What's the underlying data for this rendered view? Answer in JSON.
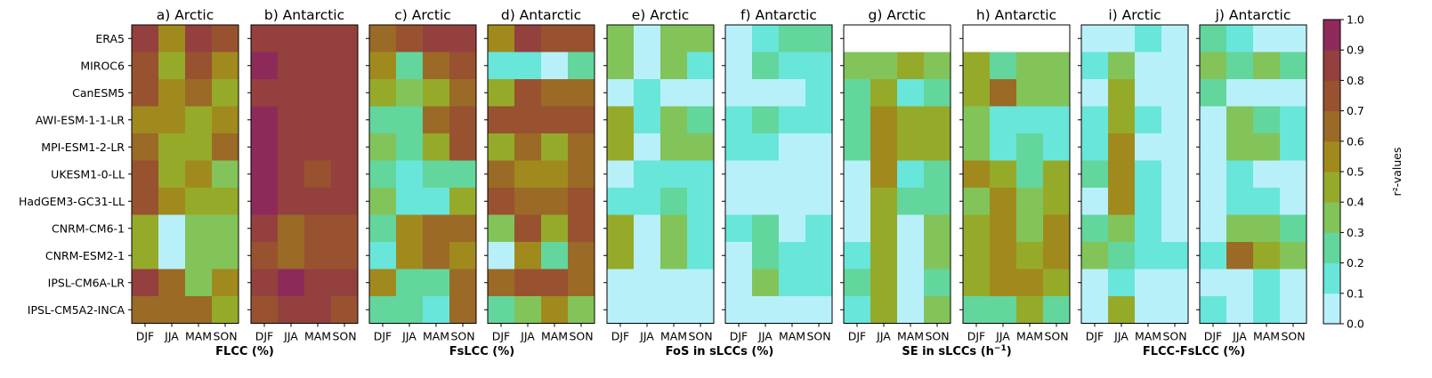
{
  "chart_data": {
    "type": "heatmap",
    "models": [
      "ERA5",
      "MIROC6",
      "CanESM5",
      "AWI-ESM-1-1-LR",
      "MPI-ESM1-2-LR",
      "UKESM1-0-LL",
      "HadGEM3-GC31-LL",
      "CNRM-CM6-1",
      "CNRM-ESM2-1",
      "IPSL-CM6A-LR",
      "IPSL-CM5A2-INCA"
    ],
    "seasons": [
      "DJF",
      "JJA",
      "MAM",
      "SON"
    ],
    "group_labels": [
      "FLCC (%)",
      "FsLCC (%)",
      "FoS in sLCCs (%)",
      "SE in sLCCs (h",
      "FLCC-FsLCC (%)"
    ],
    "colorbar": {
      "label": "r²-values",
      "ticks": [
        "0.0",
        "0.1",
        "0.2",
        "0.3",
        "0.4",
        "0.5",
        "0.6",
        "0.7",
        "0.8",
        "0.9",
        "1.0"
      ],
      "colors": [
        "#b8f0fa",
        "#68e6da",
        "#62d69c",
        "#82c45a",
        "#96aa2a",
        "#a08a1e",
        "#9a6a26",
        "#985230",
        "#94403e",
        "#8e2a5a",
        "#880078"
      ],
      "range": [
        0,
        1
      ]
    },
    "panels": [
      {
        "title": "a) Arctic",
        "values": [
          [
            0.85,
            0.55,
            0.85,
            0.75
          ],
          [
            0.75,
            0.45,
            0.75,
            0.55
          ],
          [
            0.75,
            0.55,
            0.65,
            0.45
          ],
          [
            0.55,
            0.55,
            0.45,
            0.55
          ],
          [
            0.65,
            0.45,
            0.45,
            0.65
          ],
          [
            0.75,
            0.45,
            0.55,
            0.35
          ],
          [
            0.75,
            0.55,
            0.45,
            0.45
          ],
          [
            0.45,
            0.05,
            0.35,
            0.35
          ],
          [
            0.45,
            0.05,
            0.35,
            0.35
          ],
          [
            0.85,
            0.65,
            0.35,
            0.55
          ],
          [
            0.65,
            0.65,
            0.65,
            0.45
          ]
        ]
      },
      {
        "title": "b) Antarctic",
        "values": [
          [
            0.85,
            0.85,
            0.85,
            0.85
          ],
          [
            0.95,
            0.85,
            0.85,
            0.85
          ],
          [
            0.85,
            0.85,
            0.85,
            0.85
          ],
          [
            0.95,
            0.85,
            0.85,
            0.85
          ],
          [
            0.95,
            0.85,
            0.85,
            0.85
          ],
          [
            0.95,
            0.85,
            0.75,
            0.85
          ],
          [
            0.95,
            0.85,
            0.85,
            0.85
          ],
          [
            0.85,
            0.65,
            0.75,
            0.75
          ],
          [
            0.75,
            0.65,
            0.75,
            0.75
          ],
          [
            0.85,
            0.95,
            0.85,
            0.85
          ],
          [
            0.75,
            0.85,
            0.85,
            0.75
          ]
        ]
      },
      {
        "title": "c) Arctic",
        "values": [
          [
            0.65,
            0.75,
            0.85,
            0.85
          ],
          [
            0.55,
            0.25,
            0.65,
            0.75
          ],
          [
            0.45,
            0.35,
            0.45,
            0.65
          ],
          [
            0.25,
            0.25,
            0.65,
            0.75
          ],
          [
            0.35,
            0.25,
            0.45,
            0.75
          ],
          [
            0.25,
            0.15,
            0.25,
            0.25
          ],
          [
            0.35,
            0.15,
            0.15,
            0.45
          ],
          [
            0.25,
            0.55,
            0.65,
            0.65
          ],
          [
            0.15,
            0.55,
            0.65,
            0.55
          ],
          [
            0.55,
            0.25,
            0.25,
            0.65
          ],
          [
            0.25,
            0.25,
            0.15,
            0.65
          ]
        ]
      },
      {
        "title": "d) Antarctic",
        "values": [
          [
            0.55,
            0.85,
            0.75,
            0.75
          ],
          [
            0.15,
            0.15,
            0.05,
            0.25
          ],
          [
            0.45,
            0.75,
            0.65,
            0.65
          ],
          [
            0.75,
            0.75,
            0.75,
            0.75
          ],
          [
            0.45,
            0.65,
            0.45,
            0.65
          ],
          [
            0.65,
            0.55,
            0.55,
            0.65
          ],
          [
            0.75,
            0.65,
            0.65,
            0.75
          ],
          [
            0.35,
            0.75,
            0.45,
            0.75
          ],
          [
            0.05,
            0.55,
            0.25,
            0.65
          ],
          [
            0.65,
            0.75,
            0.75,
            0.65
          ],
          [
            0.25,
            0.35,
            0.55,
            0.35
          ]
        ]
      },
      {
        "title": "e) Arctic",
        "values": [
          [
            0.35,
            0.05,
            0.35,
            0.35
          ],
          [
            0.35,
            0.05,
            0.35,
            0.15
          ],
          [
            0.05,
            0.15,
            0.05,
            0.05
          ],
          [
            0.45,
            0.15,
            0.35,
            0.25
          ],
          [
            0.45,
            0.05,
            0.35,
            0.35
          ],
          [
            0.05,
            0.15,
            0.15,
            0.15
          ],
          [
            0.15,
            0.15,
            0.25,
            0.15
          ],
          [
            0.45,
            0.05,
            0.35,
            0.15
          ],
          [
            0.45,
            0.05,
            0.35,
            0.15
          ],
          [
            0.05,
            0.05,
            0.05,
            0.05
          ],
          [
            0.05,
            0.05,
            0.05,
            0.05
          ]
        ]
      },
      {
        "title": "f) Antarctic",
        "values": [
          [
            0.05,
            0.15,
            0.25,
            0.25
          ],
          [
            0.05,
            0.25,
            0.15,
            0.15
          ],
          [
            0.05,
            0.05,
            0.05,
            0.15
          ],
          [
            0.15,
            0.25,
            0.15,
            0.15
          ],
          [
            0.15,
            0.15,
            0.05,
            0.05
          ],
          [
            0.05,
            0.05,
            0.05,
            0.05
          ],
          [
            0.05,
            0.05,
            0.05,
            0.05
          ],
          [
            0.15,
            0.25,
            0.05,
            0.15
          ],
          [
            0.05,
            0.25,
            0.15,
            0.15
          ],
          [
            0.05,
            0.35,
            0.15,
            0.15
          ],
          [
            0.05,
            0.05,
            0.05,
            0.05
          ]
        ]
      },
      {
        "title": "g) Arctic",
        "values": [
          [
            null,
            null,
            null,
            null
          ],
          [
            0.35,
            0.35,
            0.45,
            0.35
          ],
          [
            0.25,
            0.45,
            0.15,
            0.25
          ],
          [
            0.25,
            0.55,
            0.45,
            0.45
          ],
          [
            0.25,
            0.55,
            0.45,
            0.45
          ],
          [
            0.05,
            0.55,
            0.15,
            0.25
          ],
          [
            0.05,
            0.45,
            0.25,
            0.25
          ],
          [
            0.05,
            0.45,
            0.05,
            0.35
          ],
          [
            0.15,
            0.45,
            0.05,
            0.35
          ],
          [
            0.25,
            0.45,
            0.05,
            0.25
          ],
          [
            0.15,
            0.45,
            0.05,
            0.35
          ]
        ]
      },
      {
        "title": "h) Antarctic",
        "values": [
          [
            null,
            null,
            null,
            null
          ],
          [
            0.45,
            0.25,
            0.35,
            0.35
          ],
          [
            0.45,
            0.65,
            0.35,
            0.35
          ],
          [
            0.35,
            0.15,
            0.15,
            0.15
          ],
          [
            0.35,
            0.15,
            0.25,
            0.15
          ],
          [
            0.55,
            0.45,
            0.25,
            0.45
          ],
          [
            0.35,
            0.55,
            0.35,
            0.45
          ],
          [
            0.45,
            0.55,
            0.35,
            0.55
          ],
          [
            0.45,
            0.55,
            0.45,
            0.55
          ],
          [
            0.45,
            0.55,
            0.55,
            0.45
          ],
          [
            0.25,
            0.25,
            0.45,
            0.25
          ]
        ]
      },
      {
        "title": "i) Arctic",
        "values": [
          [
            0.05,
            0.05,
            0.15,
            0.05
          ],
          [
            0.15,
            0.35,
            0.05,
            0.05
          ],
          [
            0.05,
            0.45,
            0.05,
            0.05
          ],
          [
            0.15,
            0.45,
            0.15,
            0.05
          ],
          [
            0.15,
            0.55,
            0.05,
            0.05
          ],
          [
            0.25,
            0.55,
            0.15,
            0.05
          ],
          [
            0.05,
            0.55,
            0.15,
            0.05
          ],
          [
            0.25,
            0.35,
            0.15,
            0.05
          ],
          [
            0.35,
            0.25,
            0.15,
            0.15
          ],
          [
            0.05,
            0.15,
            0.05,
            0.05
          ],
          [
            0.05,
            0.45,
            0.05,
            0.05
          ]
        ]
      },
      {
        "title": "j) Antarctic",
        "values": [
          [
            0.25,
            0.15,
            0.05,
            0.05
          ],
          [
            0.35,
            0.25,
            0.35,
            0.25
          ],
          [
            0.25,
            0.05,
            0.05,
            0.05
          ],
          [
            0.05,
            0.35,
            0.25,
            0.15
          ],
          [
            0.05,
            0.35,
            0.35,
            0.15
          ],
          [
            0.05,
            0.15,
            0.05,
            0.05
          ],
          [
            0.05,
            0.15,
            0.15,
            0.05
          ],
          [
            0.05,
            0.35,
            0.35,
            0.25
          ],
          [
            0.15,
            0.65,
            0.45,
            0.35
          ],
          [
            0.05,
            0.05,
            0.15,
            0.05
          ],
          [
            0.15,
            0.05,
            0.15,
            0.05
          ]
        ]
      }
    ]
  }
}
